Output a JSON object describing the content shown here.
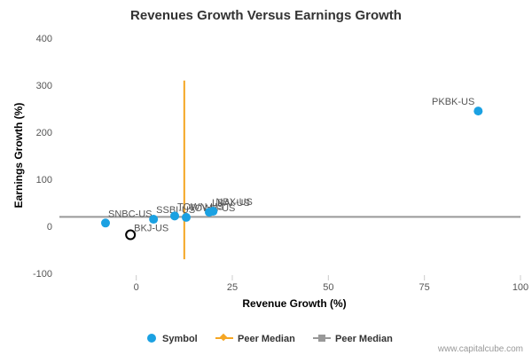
{
  "chart_data": {
    "type": "scatter",
    "title": "Revenues Growth Versus Earnings Growth",
    "xlabel": "Revenue Growth (%)",
    "ylabel": "Earnings Growth (%)",
    "xlim": [
      -20,
      100
    ],
    "ylim": [
      -100,
      400
    ],
    "x_ticks": [
      {
        "value": 0,
        "label": "0"
      },
      {
        "value": 25,
        "label": "25"
      },
      {
        "value": 50,
        "label": "50"
      },
      {
        "value": 75,
        "label": "75"
      },
      {
        "value": 100,
        "label": "100"
      }
    ],
    "y_ticks": [
      {
        "value": -100,
        "label": "-100"
      },
      {
        "value": 0,
        "label": "0"
      },
      {
        "value": 100,
        "label": "100"
      },
      {
        "value": 200,
        "label": "200"
      },
      {
        "value": 300,
        "label": "300"
      },
      {
        "value": 400,
        "label": "400"
      }
    ],
    "grid": false,
    "legend_position": "bottom",
    "series": [
      {
        "name": "Symbol",
        "color": "#1ba1e2",
        "points": [
          {
            "label": "PKBK-US",
            "x": 89,
            "y": 245
          },
          {
            "label": "SNBC-US",
            "x": -8,
            "y": 7
          },
          {
            "label": "SSBI-US",
            "x": 4.5,
            "y": 15
          },
          {
            "label": "TOWN-US",
            "x": 10,
            "y": 22
          },
          {
            "label": "TOWN-US",
            "x": 13,
            "y": 19
          },
          {
            "label": "LBAI-US",
            "x": 19,
            "y": 30
          },
          {
            "label": "NBX-US",
            "x": 20,
            "y": 32
          }
        ]
      },
      {
        "name": "BKJ-US",
        "color": "#000000",
        "points": [
          {
            "label": "BKJ-US",
            "x": -1.5,
            "y": -18
          }
        ]
      }
    ],
    "peer_median_x": {
      "name": "Peer Median",
      "value": 12.5,
      "y_range": [
        -70,
        310
      ],
      "color": "#f5a623"
    },
    "peer_median_y": {
      "name": "Peer Median",
      "value": 20,
      "color": "#999999"
    }
  },
  "legend": [
    {
      "label": "Symbol",
      "icon": "dot-icon",
      "color": "#1ba1e2"
    },
    {
      "label": "Peer Median",
      "icon": "diamond-line-icon",
      "color": "#f5a623"
    },
    {
      "label": "Peer Median",
      "icon": "square-line-icon",
      "color": "#999999"
    }
  ],
  "credit": "www.capitalcube.com"
}
